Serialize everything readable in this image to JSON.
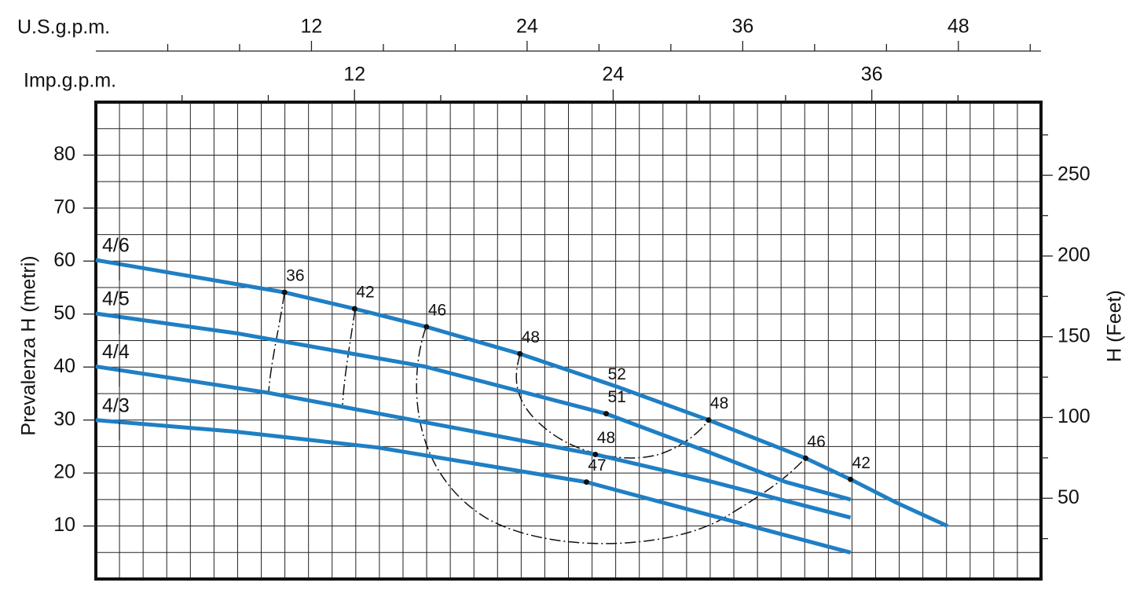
{
  "chart_data": {
    "type": "line",
    "x_label": "U.S.g.p.m.",
    "x2_label": "Imp.g.p.m.",
    "y_label": "Prevalenza H (metri)",
    "y2_label": "H (Feet)",
    "xlim": [
      0,
      52.6
    ],
    "xticks": [
      12,
      24,
      36,
      48
    ],
    "minor_xticks": [
      4,
      8,
      16,
      20,
      28,
      32,
      40,
      44,
      52
    ],
    "x2lim": [
      0,
      43.85
    ],
    "x2ticks": [
      12,
      24,
      36
    ],
    "minor_x2ticks": [
      4,
      8,
      16,
      20,
      28,
      32,
      40
    ],
    "ylim": [
      0,
      90
    ],
    "yticks": [
      10,
      20,
      30,
      40,
      50,
      60,
      70,
      80
    ],
    "y2lim": [
      0,
      295.3
    ],
    "y2ticks": [
      50,
      100,
      150,
      200,
      250
    ],
    "minor_y2ticks": [
      25,
      75,
      125,
      175,
      225,
      275
    ],
    "grid": true,
    "series": [
      {
        "name": "4/6",
        "color": "#1f7fc4",
        "x": [
          0,
          10.5,
          14.4,
          18.4,
          23.6,
          29.0,
          34.1,
          39.5,
          42.0,
          44.5,
          47.4
        ],
        "values": [
          60.2,
          54.1,
          51.0,
          47.6,
          42.5,
          36.3,
          30.0,
          22.8,
          18.8,
          14.5,
          10.0
        ]
      },
      {
        "name": "4/5",
        "color": "#1f7fc4",
        "x": [
          0,
          7.8,
          18.3,
          28.4,
          34.0,
          38.4,
          42.0
        ],
        "values": [
          50.1,
          46.4,
          40.1,
          31.2,
          24.1,
          18.3,
          15.0
        ]
      },
      {
        "name": "4/4",
        "color": "#1f7fc4",
        "x": [
          0,
          9.5,
          18.3,
          27.8,
          34.0,
          42.0
        ],
        "values": [
          40.1,
          35.2,
          29.6,
          23.5,
          18.6,
          11.6
        ]
      },
      {
        "name": "4/3",
        "color": "#1f7fc4",
        "x": [
          0,
          7.8,
          15.7,
          27.3,
          34.0,
          42.0
        ],
        "values": [
          30.0,
          27.8,
          24.8,
          18.3,
          12.2,
          5.0
        ]
      }
    ],
    "efficiency": {
      "x": [
        10.5,
        14.4,
        18.4,
        23.6,
        28.4,
        27.8,
        34.1,
        39.5,
        42.0,
        27.3
      ],
      "y": [
        54.1,
        51.0,
        47.6,
        42.5,
        31.2,
        23.5,
        30.0,
        22.8,
        18.8,
        18.3
      ],
      "values": [
        36,
        42,
        46,
        48,
        51,
        48,
        48,
        46,
        42,
        47
      ]
    },
    "annotations": [
      {
        "text": "52",
        "x": 29.0,
        "y": 38.5
      }
    ]
  }
}
